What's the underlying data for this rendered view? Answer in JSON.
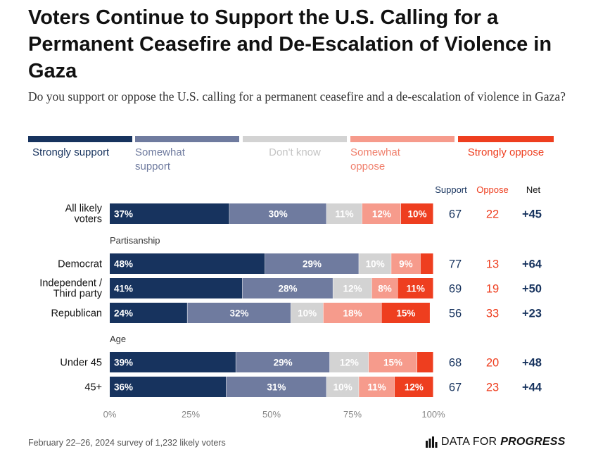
{
  "chart_data": {
    "type": "bar",
    "stacked": true,
    "orientation": "horizontal",
    "title": "Voters Continue to Support the U.S. Calling for a Permanent Ceasefire and De-Escalation of Violence in Gaza",
    "subtitle": "Do you support or oppose the U.S. calling for a permanent ceasefire and a de-escalation of violence in Gaza?",
    "legend": [
      {
        "name": "Strongly support",
        "color": "#17335e"
      },
      {
        "name": "Somewhat support",
        "color": "#6f7b9f"
      },
      {
        "name": "Don't know",
        "color": "#d3d3d3"
      },
      {
        "name": "Somewhat oppose",
        "color": "#f69b8c"
      },
      {
        "name": "Strongly oppose",
        "color": "#ee3e1f"
      }
    ],
    "legend_labels": [
      [
        "Strongly support"
      ],
      [
        "Somewhat",
        "support"
      ],
      [
        "Don't know"
      ],
      [
        "Somewhat",
        "oppose"
      ],
      [
        "Strongly oppose"
      ]
    ],
    "column_headers": {
      "support": "Support",
      "oppose": "Oppose",
      "net": "Net"
    },
    "groups": [
      "Partisanship",
      "Age"
    ],
    "rows": [
      {
        "label": [
          "All likely",
          "voters"
        ],
        "values": [
          37,
          30,
          11,
          12,
          10
        ],
        "labels": [
          "37%",
          "30%",
          "11%",
          "12%",
          "10%"
        ],
        "support": "67",
        "oppose": "22",
        "net": "+45"
      },
      {
        "label": [
          "Democrat"
        ],
        "values": [
          48,
          29,
          10,
          9,
          4
        ],
        "labels": [
          "48%",
          "29%",
          "10%",
          "9%",
          ""
        ],
        "support": "77",
        "oppose": "13",
        "net": "+64"
      },
      {
        "label": [
          "Independent /",
          "Third party"
        ],
        "values": [
          41,
          28,
          12,
          8,
          11
        ],
        "labels": [
          "41%",
          "28%",
          "12%",
          "8%",
          "11%"
        ],
        "support": "69",
        "oppose": "19",
        "net": "+50"
      },
      {
        "label": [
          "Republican"
        ],
        "values": [
          24,
          32,
          10,
          18,
          15
        ],
        "labels": [
          "24%",
          "32%",
          "10%",
          "18%",
          "15%"
        ],
        "support": "56",
        "oppose": "33",
        "net": "+23"
      },
      {
        "label": [
          "Under 45"
        ],
        "values": [
          39,
          29,
          12,
          15,
          5
        ],
        "labels": [
          "39%",
          "29%",
          "12%",
          "15%",
          ""
        ],
        "support": "68",
        "oppose": "20",
        "net": "+48"
      },
      {
        "label": [
          "45+"
        ],
        "values": [
          36,
          31,
          10,
          11,
          12
        ],
        "labels": [
          "36%",
          "31%",
          "10%",
          "11%",
          "12%"
        ],
        "support": "67",
        "oppose": "23",
        "net": "+44"
      }
    ],
    "xlim": [
      0,
      100
    ],
    "xticks": [
      0,
      25,
      50,
      75,
      100
    ],
    "xtick_labels": [
      "0%",
      "25%",
      "50%",
      "75%",
      "100%"
    ],
    "value_label_colors": [
      "#ffffff",
      "#ffffff",
      "#ffffff",
      "#ffffff",
      "#ffffff"
    ],
    "column_colors": {
      "support": "#17335e",
      "oppose": "#ee3e1f",
      "net": "#17335e"
    }
  },
  "footer": {
    "source": "February 22–26, 2024 survey of 1,232 likely voters"
  },
  "brand": {
    "name_regular": "DATA FOR",
    "name_bold": "PROGRESS"
  }
}
